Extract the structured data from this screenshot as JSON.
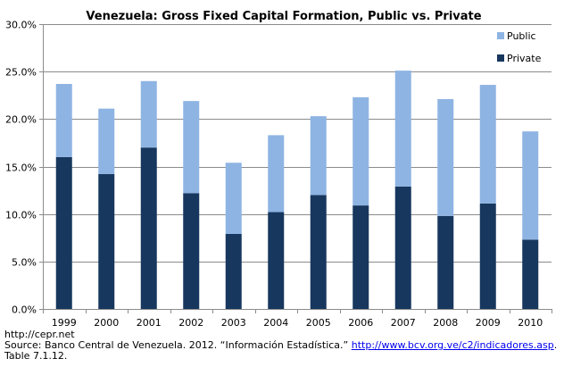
{
  "chart_data": {
    "type": "bar",
    "stacked": true,
    "title": "Venezuela: Gross Fixed Capital Formation, Public vs. Private",
    "categories": [
      "1999",
      "2000",
      "2001",
      "2002",
      "2003",
      "2004",
      "2005",
      "2006",
      "2007",
      "2008",
      "2009",
      "2010"
    ],
    "series": [
      {
        "name": "Private",
        "color": "#17375e",
        "values": [
          16.0,
          14.2,
          17.0,
          12.2,
          7.9,
          10.2,
          12.0,
          10.9,
          12.9,
          9.8,
          11.1,
          7.3
        ]
      },
      {
        "name": "Public",
        "color": "#8eb4e3",
        "values": [
          7.7,
          6.9,
          7.0,
          9.7,
          7.5,
          8.1,
          8.3,
          11.4,
          12.2,
          12.3,
          12.5,
          11.4
        ]
      }
    ],
    "ylim": [
      0,
      30
    ],
    "yticks": [
      "0.0%",
      "5.0%",
      "10.0%",
      "15.0%",
      "20.0%",
      "25.0%",
      "30.0%"
    ],
    "ytick_values": [
      0,
      5,
      10,
      15,
      20,
      25,
      30
    ],
    "xlabel": "",
    "ylabel": "",
    "legend": {
      "position": "top-right",
      "entries": [
        "Public",
        "Private"
      ]
    }
  },
  "footer": {
    "line1": "http://cepr.net",
    "line2_prefix": "Source: Banco Central de Venezuela. 2012. “Información Estadística.” ",
    "line2_link": "http://www.bcv.org.ve/c2/indicadores.asp",
    "line2_suffix": ".",
    "line3": "Table 7.1.12."
  }
}
